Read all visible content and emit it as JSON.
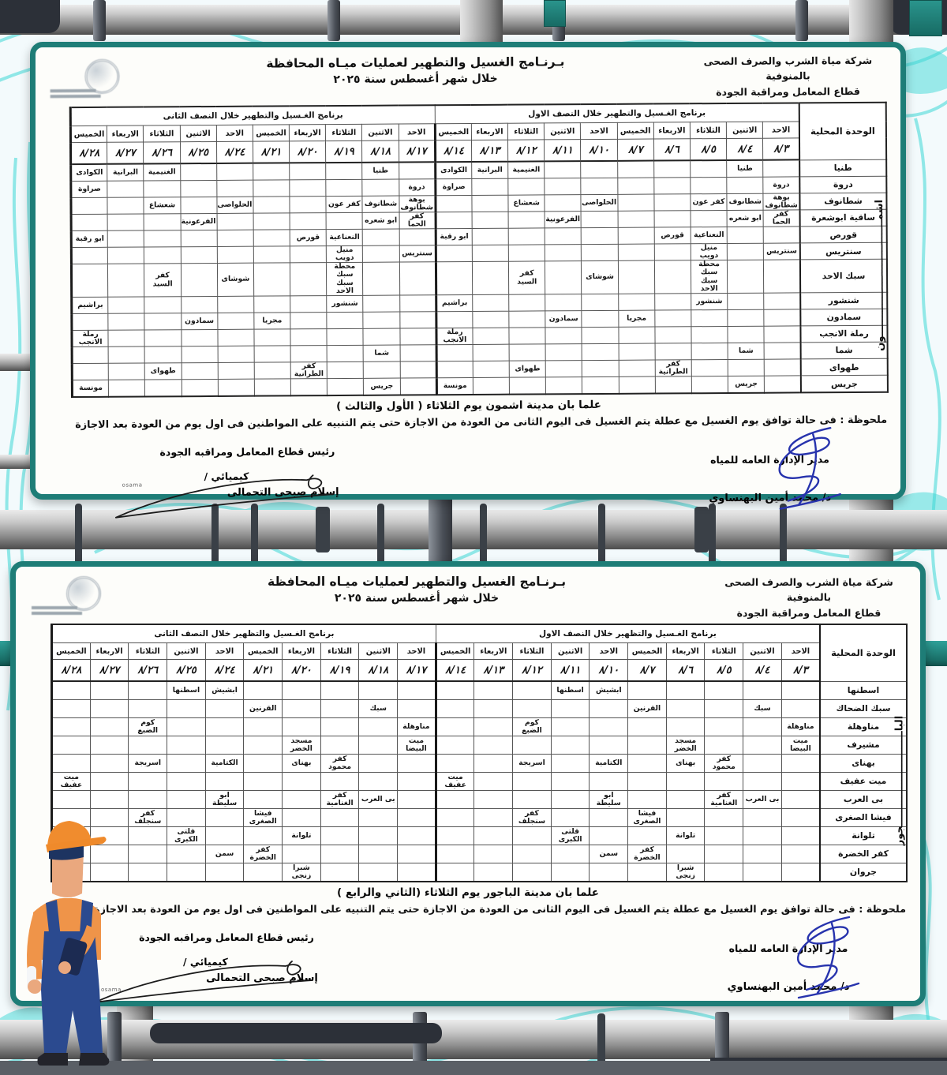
{
  "documents": [
    {
      "company_line1": "شركة مياة الشرب والصرف الصحى بالمنوفية",
      "company_line2": "قطاع المعامل ومراقبة الجودة",
      "title_line1": "بـرنـامج الغسيل والتطهير لعمليات ميـاه المحافظة",
      "title_line2": "خلال شهر أغسطس سنة ٢٠٢٥",
      "unit_header": "الوحدة المحلية",
      "half1_header": "برنامج الغـسيل والتطهير خلال النصف الاول",
      "half2_header": "برنامج الغـسيل والتطهير خلال النصف الثانى",
      "days": [
        "الاحد",
        "الاثنين",
        "الثلاثاء",
        "الاربعاء",
        "الخميس",
        "الاحد",
        "الاثنين",
        "الثلاثاء",
        "الاربعاء",
        "الخميس",
        "الاحد",
        "الاثنين",
        "الثلاثاء",
        "الاربعاء",
        "الخميس",
        "الاحد",
        "الاثنين",
        "الثلاثاء",
        "الاربعاء",
        "الخميس"
      ],
      "dates": [
        "٨/٣",
        "٨/٤",
        "٨/٥",
        "٨/٦",
        "٨/٧",
        "٨/١٠",
        "٨/١١",
        "٨/١٢",
        "٨/١٣",
        "٨/١٤",
        "٨/١٧",
        "٨/١٨",
        "٨/١٩",
        "٨/٢٠",
        "٨/٢١",
        "٨/٢٤",
        "٨/٢٥",
        "٨/٢٦",
        "٨/٢٧",
        "٨/٢٨"
      ],
      "district": "اشمون",
      "district_parts": [
        "اشم",
        "ون"
      ],
      "rows": [
        {
          "unit": "طنيا",
          "cells": {
            "1": "طنيا",
            "7": "الغنيمية",
            "8": "البرانية",
            "9": "الكوادى"
          }
        },
        {
          "unit": "دروة",
          "cells": {
            "0": "دروة",
            "9": "صراوة"
          }
        },
        {
          "unit": "شطانوف",
          "cells": {
            "0": "بوهة\nشطانوف",
            "1": "شطانوف",
            "2": "كفر عون",
            "5": "الحلواصى",
            "7": "شعشاع"
          }
        },
        {
          "unit": "ساقية ابوشعرة",
          "cells": {
            "0": "كفر الحما",
            "1": "ابو شعره",
            "6": "الفرعونية"
          }
        },
        {
          "unit": "قورص",
          "cells": {
            "2": "النعناعية",
            "3": "قورص",
            "9": "ابو رقبة"
          }
        },
        {
          "unit": "سنتريس",
          "cells": {
            "0": "سنتريس",
            "2": "منيل دويب"
          }
        },
        {
          "unit": "سبك الاحد",
          "cells": {
            "2": "محطة سبك\nسبك الاحد",
            "5": "شوشاى",
            "7": "كفر السيد"
          }
        },
        {
          "unit": "شنشور",
          "cells": {
            "2": "شنشور",
            "9": "براشيم"
          }
        },
        {
          "unit": "سمادون",
          "cells": {
            "4": "مجريا",
            "6": "سمادون"
          }
        },
        {
          "unit": "رملة الانجب",
          "cells": {
            "9": "رملة\nالانجب"
          }
        },
        {
          "unit": "شما",
          "cells": {
            "1": "شما"
          }
        },
        {
          "unit": "طهواى",
          "cells": {
            "3": "كفر\nالطرانية",
            "7": "طهواى"
          }
        },
        {
          "unit": "جريس",
          "cells": {
            "1": "جريس",
            "9": "مونسة"
          }
        }
      ],
      "notice": "علما بان مدينة اشمون يوم الثلاثاء ( الأول والثالث )",
      "note": "ملحوظة : فى حالة توافق يوم الغسيل مع عطلة يتم الغسيل فى اليوم الثانى من العودة من الاجازة حتى يتم التنبيه على المواطنين فى اول يوم من العودة بعد الاجازة",
      "sign_right_title": "مدير الإدارة العامه للمياه",
      "sign_right_name": "د/ محمد أمين البهنساوي",
      "sign_left_title": "رئيس قطاع المعامل ومراقبه الجودة",
      "sign_left_role": "كيميائي /",
      "sign_left_name": "إسلام صبحى التحمالى",
      "watermark": "osama"
    },
    {
      "company_line1": "شركة مياة الشرب والصرف الصحى بالمنوفية",
      "company_line2": "قطاع المعامل ومراقبة الجودة",
      "title_line1": "بـرنـامج الغسيل والتطهير لعمليات ميـاه المحافظة",
      "title_line2": "خلال شهر أغسطس سنة ٢٠٢٥",
      "unit_header": "الوحدة المحلية",
      "half1_header": "برنامج الغـسيل والتظهير خلال النصف الاول",
      "half2_header": "برنامج الغـسيل والتظهير خلال النصف الثانى",
      "days": [
        "الاحد",
        "الاثنين",
        "الثلاثاء",
        "الاربعاء",
        "الخميس",
        "الاحد",
        "الاثنين",
        "الثلاثاء",
        "الاربعاء",
        "الخميس",
        "الاحد",
        "الاثنين",
        "الثلاثاء",
        "الاربعاء",
        "الخميس",
        "الاحد",
        "الاثنين",
        "الثلاثاء",
        "الاربعاء",
        "الخميس"
      ],
      "dates": [
        "٨/٣",
        "٨/٤",
        "٨/٥",
        "٨/٦",
        "٨/٧",
        "٨/١٠",
        "٨/١١",
        "٨/١٢",
        "٨/١٣",
        "٨/١٤",
        "٨/١٧",
        "٨/١٨",
        "٨/١٩",
        "٨/٢٠",
        "٨/٢١",
        "٨/٢٤",
        "٨/٢٥",
        "٨/٢٦",
        "٨/٢٧",
        "٨/٢٨"
      ],
      "district": "الباجور",
      "district_parts": [
        "البا",
        "جور"
      ],
      "rows": [
        {
          "unit": "اسطنها",
          "cells": {
            "5": "ابشيش",
            "6": "اسطنها"
          }
        },
        {
          "unit": "سبك الضحاك",
          "cells": {
            "1": "سبك",
            "4": "القرنين"
          }
        },
        {
          "unit": "مناوهلة",
          "cells": {
            "0": "مناوهلة",
            "7": "كوم الضبع"
          }
        },
        {
          "unit": "مشيرف",
          "cells": {
            "0": "ميت البيضا",
            "3": "مسجد الخضر"
          }
        },
        {
          "unit": "بهناى",
          "cells": {
            "2": "كفر محمود",
            "3": "بهناى",
            "5": "الكتامية",
            "7": "اسريجة"
          }
        },
        {
          "unit": "ميت عفيف",
          "cells": {
            "9": "ميت عفيف"
          }
        },
        {
          "unit": "بى العرب",
          "cells": {
            "1": "بى العرب",
            "2": "كفر الغنامية",
            "5": "ابو سليطة"
          }
        },
        {
          "unit": "فيشا الصغرى",
          "cells": {
            "4": "فيشا\nالصغرى",
            "7": "كفر\nسنجلف"
          }
        },
        {
          "unit": "تلوانة",
          "cells": {
            "3": "تلوانة",
            "6": "قلتى\nالكبرى"
          }
        },
        {
          "unit": "كفر الخضرة",
          "cells": {
            "4": "كفر\nالخضرة",
            "5": "سمن"
          }
        },
        {
          "unit": "جروان",
          "cells": {
            "3": "شبرا زنجى"
          }
        }
      ],
      "notice": "علما بان مدينة الباجور يوم الثلاثاء (الثاني والرابع )",
      "note": "ملحوظة : فى حالة توافق يوم الغسيل مع عطلة يتم الغسيل فى اليوم الثانى من العودة من الاجازة حتى يتم التنبيه على المواطنين فى اول يوم من العودة بعد الاجازة",
      "sign_right_title": "مدير الإدارة العامه للمياه",
      "sign_right_name": "د/ محمد أمين البهنساوي",
      "sign_left_title": "رئيس قطاع المعامل ومراقبه الجودة",
      "sign_left_role": "كيميائي /",
      "sign_left_name": "إسلام صبحى التحمالى",
      "watermark": "osama"
    }
  ],
  "colors": {
    "card_border": "#1e7d77",
    "wave": "#3fd8d6",
    "signature_blue": "#2733ad",
    "pipe_dark": "#2c3038",
    "worker_orange": "#ef9449",
    "worker_navy": "#2b4a8f"
  }
}
